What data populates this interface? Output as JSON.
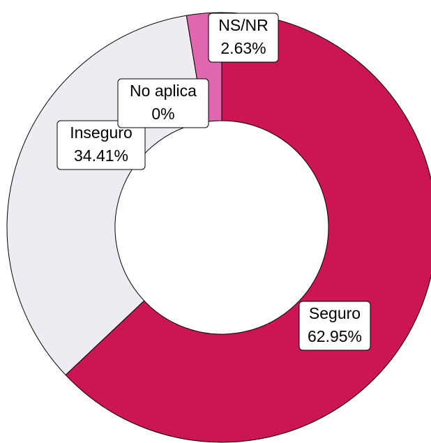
{
  "chart_data": {
    "type": "donut",
    "categories": [
      "Seguro",
      "Inseguro",
      "No aplica",
      "NS/NR"
    ],
    "values": [
      62.95,
      34.41,
      0,
      2.63
    ],
    "value_labels": [
      "62.95%",
      "34.41%",
      "0%",
      "2.63%"
    ],
    "colors": [
      "#cc1554",
      "#efebf2",
      "#efebf2",
      "#e066b0"
    ]
  }
}
